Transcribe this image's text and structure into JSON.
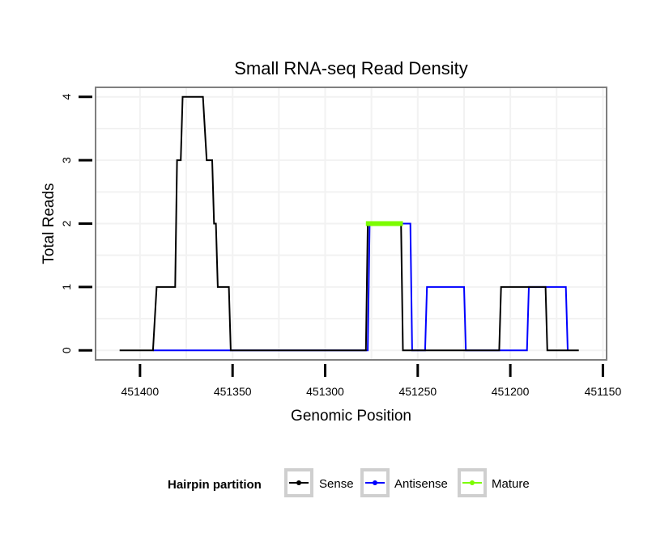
{
  "chart_data": {
    "type": "line",
    "title": "Small RNA-seq Read Density",
    "xlabel": "Genomic Position",
    "ylabel": "Total Reads",
    "xlim": [
      451424,
      451148
    ],
    "ylim": [
      -0.15,
      4.15
    ],
    "x_reversed": true,
    "grid": true,
    "x_ticks": [
      451400,
      451350,
      451300,
      451250,
      451200,
      451150
    ],
    "x_tick_labels": [
      "451400",
      "451350",
      "451300",
      "451250",
      "451200",
      "451150"
    ],
    "y_ticks": [
      0,
      1,
      2,
      3,
      4
    ],
    "y_tick_labels": [
      "0",
      "1",
      "2",
      "3",
      "4"
    ],
    "legend": {
      "title": "Hairpin partition",
      "position": "bottom",
      "entries": [
        {
          "name": "Sense",
          "color": "#000000"
        },
        {
          "name": "Antisense",
          "color": "#0000ff"
        },
        {
          "name": "Mature",
          "color": "#7cfc00"
        }
      ]
    },
    "series": [
      {
        "name": "Sense",
        "color": "#000000",
        "points": [
          [
            451411,
            0
          ],
          [
            451393,
            0
          ],
          [
            451391,
            1
          ],
          [
            451381,
            1
          ],
          [
            451380,
            3
          ],
          [
            451378,
            3
          ],
          [
            451377,
            4
          ],
          [
            451366,
            4
          ],
          [
            451364,
            3
          ],
          [
            451361,
            3
          ],
          [
            451360,
            2
          ],
          [
            451359,
            2
          ],
          [
            451358,
            1
          ],
          [
            451352,
            1
          ],
          [
            451351,
            0
          ],
          [
            451278,
            0
          ],
          [
            451277,
            2
          ],
          [
            451259,
            2
          ],
          [
            451258,
            0
          ],
          [
            451206,
            0
          ],
          [
            451205,
            1
          ],
          [
            451181,
            1
          ],
          [
            451180,
            0
          ],
          [
            451163,
            0
          ]
        ]
      },
      {
        "name": "Antisense",
        "color": "#0000ff",
        "points": [
          [
            451393,
            0
          ],
          [
            451277,
            0
          ],
          [
            451276,
            2
          ],
          [
            451254,
            2
          ],
          [
            451253,
            0
          ],
          [
            451246,
            0
          ],
          [
            451245,
            1
          ],
          [
            451225,
            1
          ],
          [
            451224,
            0
          ],
          [
            451191,
            0
          ],
          [
            451190,
            1
          ],
          [
            451170,
            1
          ],
          [
            451169,
            0
          ]
        ]
      },
      {
        "name": "Mature",
        "color": "#7cfc00",
        "points": [
          [
            451278,
            2
          ],
          [
            451258,
            2
          ]
        ]
      }
    ]
  }
}
